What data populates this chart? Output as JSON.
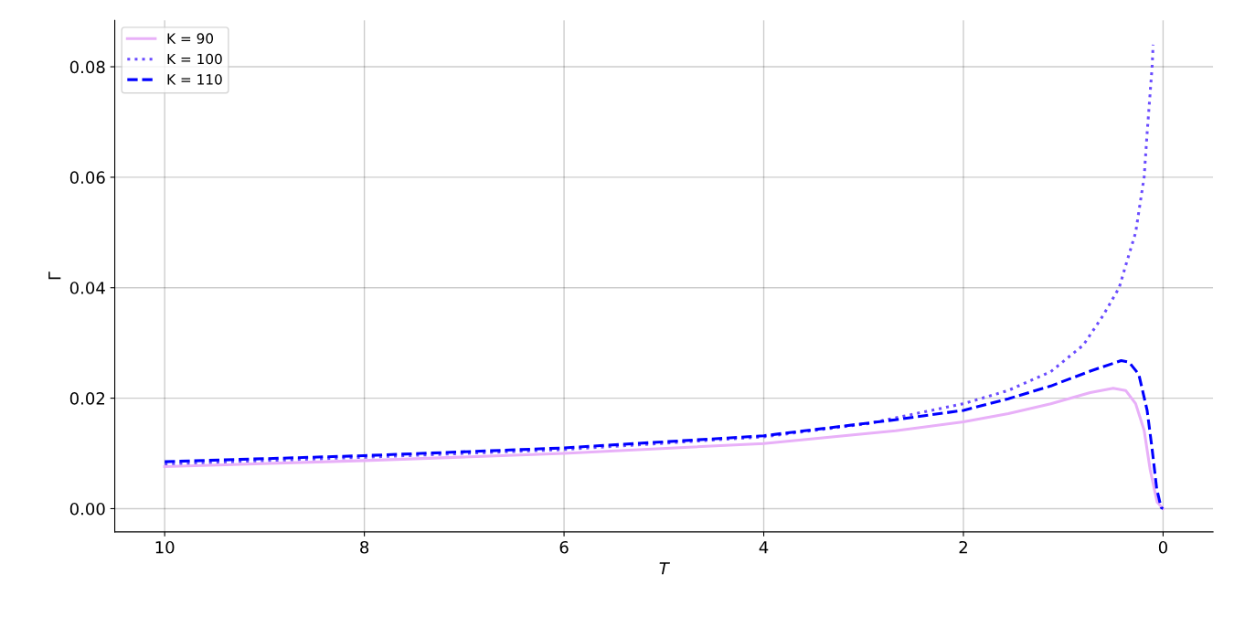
{
  "chart_data": {
    "type": "line",
    "xlabel": "T",
    "ylabel": "Γ",
    "xlim": [
      10.5,
      -0.5
    ],
    "xticks": [
      10,
      8,
      6,
      4,
      2,
      0
    ],
    "ylim": [
      -0.0042,
      0.0884
    ],
    "yticks": [
      {
        "value": 0,
        "label": "0.00"
      },
      {
        "value": 0.02,
        "label": "0.02"
      },
      {
        "value": 0.04,
        "label": "0.04"
      },
      {
        "value": 0.06,
        "label": "0.06"
      },
      {
        "value": 0.08,
        "label": "0.08"
      }
    ],
    "grid": true,
    "legend": "top left",
    "series": [
      {
        "name": "K = 90",
        "color": "#e8b0f8",
        "line_style": "solid",
        "x": [
          10,
          8,
          6,
          4,
          2.68,
          2,
          1.55,
          1.125,
          0.73,
          0.5,
          0.375,
          0.275,
          0.19,
          0.13,
          0.06,
          0
        ],
        "values": [
          0.0076,
          0.0087,
          0.01,
          0.0118,
          0.0141,
          0.0157,
          0.0172,
          0.019,
          0.021,
          0.0218,
          0.0214,
          0.019,
          0.0142,
          0.0071,
          0.0012,
          0
        ]
      },
      {
        "name": "K = 100",
        "color": "#6a4cff",
        "line_style": "dotted",
        "x": [
          10,
          8,
          6,
          4,
          2.955,
          2,
          1.55,
          1.125,
          0.8,
          0.6,
          0.44,
          0.375,
          0.275,
          0.19,
          0.16,
          0.11,
          0.1
        ],
        "values": [
          0.0081,
          0.0093,
          0.0107,
          0.013,
          0.0154,
          0.019,
          0.0214,
          0.0248,
          0.0296,
          0.035,
          0.04,
          0.044,
          0.05,
          0.06,
          0.068,
          0.08,
          0.084
        ]
      },
      {
        "name": "K = 110",
        "color": "#0000ff",
        "line_style": "dashed",
        "x": [
          10,
          8,
          6,
          4,
          2.68,
          2,
          1.55,
          1.125,
          0.73,
          0.42,
          0.34,
          0.243,
          0.16,
          0.11,
          0.064,
          0.02,
          0
        ],
        "values": [
          0.0085,
          0.0096,
          0.011,
          0.0132,
          0.0161,
          0.0178,
          0.0199,
          0.0222,
          0.0249,
          0.0268,
          0.0265,
          0.0243,
          0.0178,
          0.0108,
          0.0036,
          0.0002,
          0
        ]
      }
    ]
  }
}
